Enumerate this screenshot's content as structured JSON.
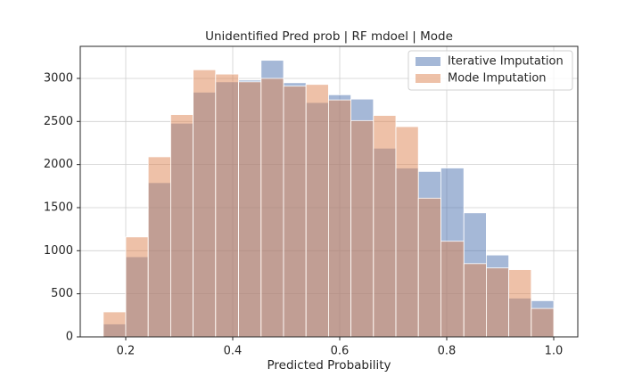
{
  "chart_data": {
    "type": "histogram",
    "title": "Unidentified Pred prob | RF mdoel | Mode",
    "xlabel": "Predicted Probability",
    "bins": [
      0.158,
      0.2,
      0.242,
      0.284,
      0.326,
      0.368,
      0.411,
      0.453,
      0.495,
      0.537,
      0.579,
      0.621,
      0.663,
      0.705,
      0.747,
      0.789,
      0.832,
      0.874,
      0.916,
      0.958,
      1.0
    ],
    "series": [
      {
        "name": "Iterative Imputation",
        "color": "#4c72b0",
        "values": [
          150,
          930,
          1790,
          2480,
          2840,
          2960,
          2980,
          3210,
          2950,
          2720,
          2810,
          2760,
          2190,
          1960,
          1920,
          1960,
          1440,
          950,
          450,
          420
        ]
      },
      {
        "name": "Mode Imputation",
        "color": "#dd8452",
        "values": [
          290,
          1160,
          2090,
          2580,
          3100,
          3050,
          2960,
          3000,
          2910,
          2930,
          2750,
          2510,
          2570,
          2440,
          1610,
          1110,
          850,
          800,
          780,
          330
        ]
      }
    ],
    "xlim": [
      0.115,
      1.045
    ],
    "ylim": [
      0,
      3372
    ],
    "xticks": [
      0.2,
      0.4,
      0.6,
      0.8,
      {
        "value": 1.0,
        "label": "1.0"
      }
    ],
    "yticks": [
      0,
      500,
      1000,
      1500,
      2000,
      2500,
      3000
    ],
    "grid": true,
    "legend": "upper right",
    "alpha": 0.5
  }
}
